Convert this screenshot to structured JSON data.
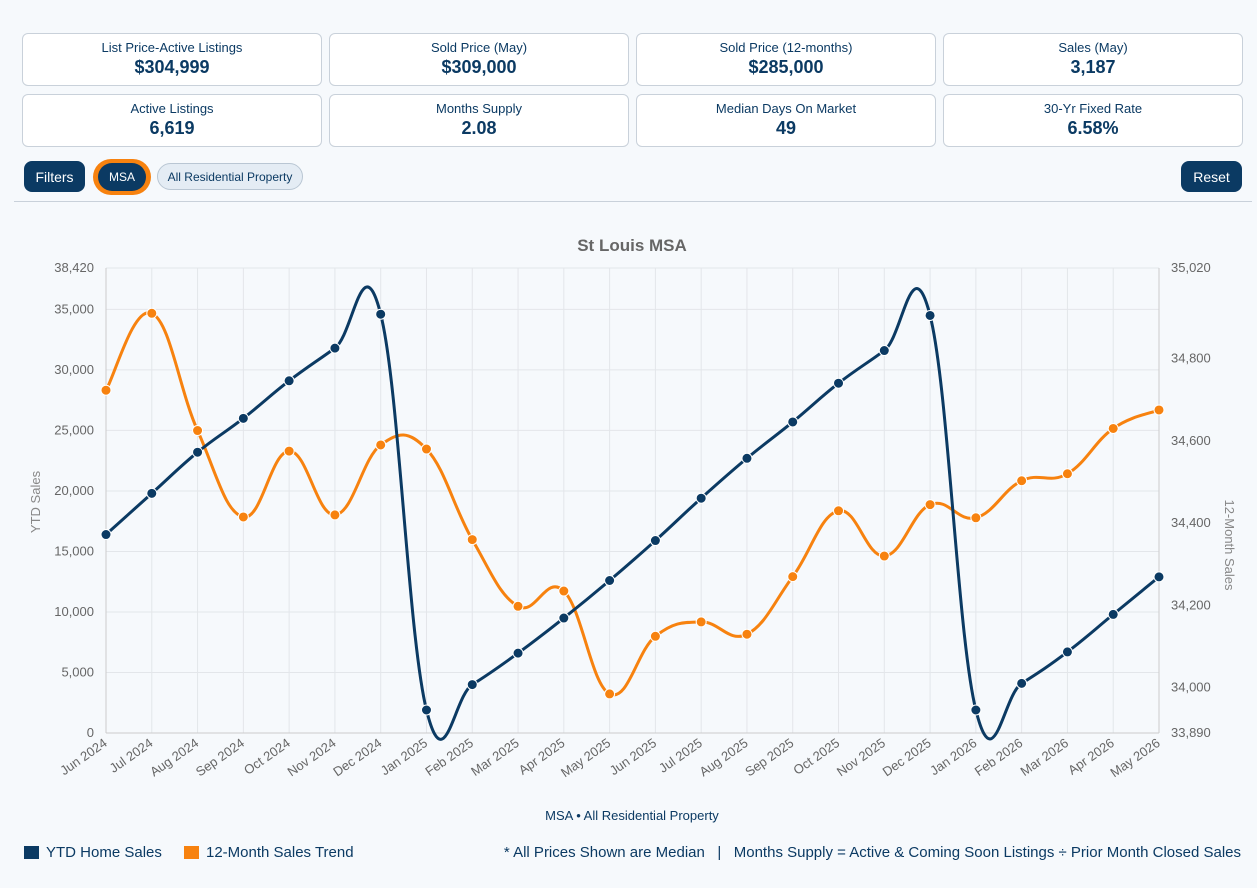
{
  "cards": [
    {
      "label": "List Price-Active Listings",
      "value": "$304,999"
    },
    {
      "label": "Sold Price (May)",
      "value": "$309,000"
    },
    {
      "label": "Sold Price (12-months)",
      "value": "$285,000"
    },
    {
      "label": "Sales (May)",
      "value": "3,187"
    },
    {
      "label": "Active Listings",
      "value": "6,619"
    },
    {
      "label": "Months Supply",
      "value": "2.08"
    },
    {
      "label": "Median Days On Market",
      "value": "49"
    },
    {
      "label": "30-Yr Fixed Rate",
      "value": "6.58%"
    }
  ],
  "toolbar": {
    "filters_label": "Filters",
    "msa_chip": "MSA",
    "property_chip": "All Residential Property",
    "reset_label": "Reset"
  },
  "legend": {
    "ytd": "YTD Home Sales",
    "trend": "12-Month Sales Trend"
  },
  "footnote": "* All Prices Shown are Median   |   Months Supply = Active & Coming Soon Listings ÷ Prior Month Closed Sales",
  "colors": {
    "ytd": "#0b3a63",
    "trend": "#f7820f"
  },
  "chart_data": {
    "type": "line",
    "title": "St Louis MSA",
    "subtitle": "MSA • All Residential Property",
    "xlabel": "",
    "ylabel": "YTD Sales",
    "y2label": "12-Month Sales",
    "categories": [
      "Jun 2024",
      "Jul 2024",
      "Aug 2024",
      "Sep 2024",
      "Oct 2024",
      "Nov 2024",
      "Dec 2024",
      "Jan 2025",
      "Feb 2025",
      "Mar 2025",
      "Apr 2025",
      "May 2025",
      "Jun 2025",
      "Jul 2025",
      "Aug 2025",
      "Sep 2025",
      "Oct 2025",
      "Nov 2025",
      "Dec 2025",
      "Jan 2026",
      "Feb 2026",
      "Mar 2026",
      "Apr 2026",
      "May 2026"
    ],
    "ylim": [
      0,
      38420
    ],
    "yticks": [
      0,
      5000,
      10000,
      15000,
      20000,
      25000,
      30000,
      35000,
      38420
    ],
    "ytick_labels": [
      "0",
      "5,000",
      "10,000",
      "15,000",
      "20,000",
      "25,000",
      "30,000",
      "35,000",
      "38,420"
    ],
    "y2lim": [
      33890,
      35020
    ],
    "y2ticks": [
      33890,
      34000,
      34200,
      34400,
      34600,
      34800,
      35020
    ],
    "y2tick_labels": [
      "33,890",
      "34,000",
      "34,200",
      "34,400",
      "34,600",
      "34,800",
      "35,020"
    ],
    "grid": true,
    "legend_position": "bottom-left",
    "series": [
      {
        "name": "YTD Home Sales",
        "axis": "left",
        "values": [
          16400,
          19800,
          23200,
          26000,
          29100,
          31800,
          34600,
          1900,
          4000,
          6600,
          9500,
          12600,
          15900,
          19400,
          22700,
          25700,
          28900,
          31600,
          34500,
          1900,
          4100,
          6700,
          9800,
          12900
        ]
      },
      {
        "name": "12-Month Sales Trend",
        "axis": "right",
        "values": [
          34723,
          34910,
          34625,
          34415,
          34575,
          34420,
          34590,
          34580,
          34360,
          34198,
          34235,
          33985,
          34125,
          34160,
          34130,
          34270,
          34430,
          34320,
          34445,
          34413,
          34503,
          34520,
          34630,
          34675
        ]
      }
    ]
  }
}
